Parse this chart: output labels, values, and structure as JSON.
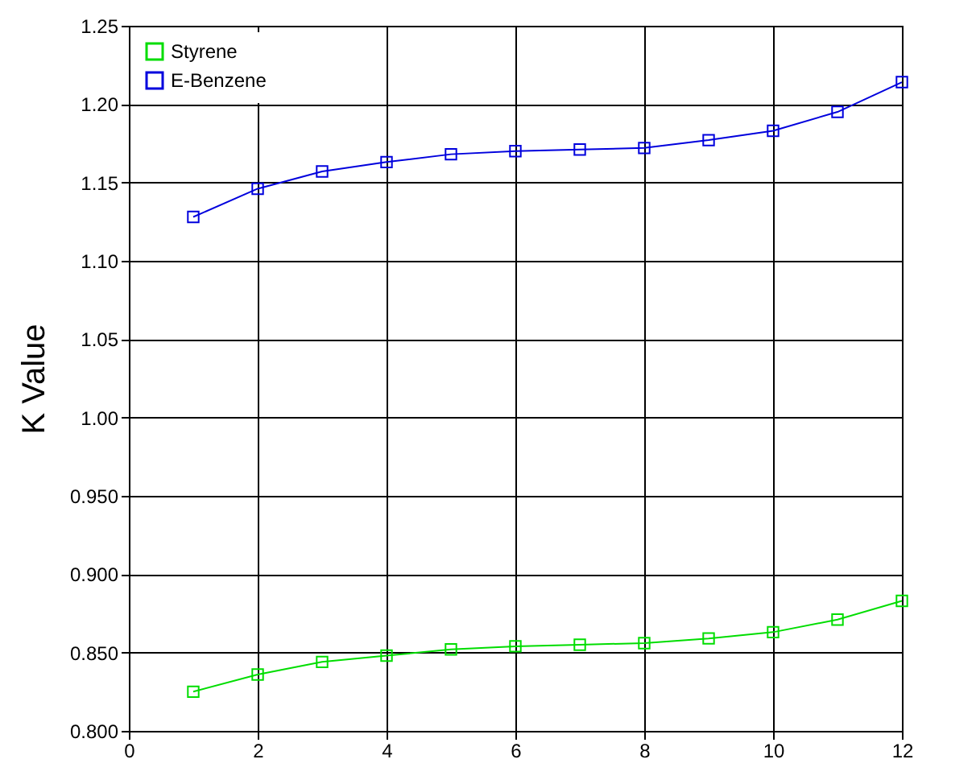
{
  "chart_data": {
    "type": "line",
    "ylabel": "K Value",
    "x": [
      1,
      2,
      3,
      4,
      5,
      6,
      7,
      8,
      9,
      10,
      11,
      12
    ],
    "series": [
      {
        "name": "Styrene",
        "color": "#00dd00",
        "values": [
          0.825,
          0.836,
          0.844,
          0.848,
          0.852,
          0.854,
          0.855,
          0.856,
          0.859,
          0.863,
          0.871,
          0.883
        ]
      },
      {
        "name": "E-Benzene",
        "color": "#0000dd",
        "values": [
          1.128,
          1.146,
          1.157,
          1.163,
          1.168,
          1.17,
          1.171,
          1.172,
          1.177,
          1.183,
          1.195,
          1.214
        ]
      }
    ],
    "xlim": [
      0,
      12
    ],
    "xticks": [
      0,
      2,
      4,
      6,
      8,
      10,
      12
    ],
    "ylim": [
      0.8,
      1.25
    ],
    "yticks": [
      {
        "value": 0.8,
        "label": "0.800"
      },
      {
        "value": 0.85,
        "label": "0.850"
      },
      {
        "value": 0.9,
        "label": "0.900"
      },
      {
        "value": 0.95,
        "label": "0.950"
      },
      {
        "value": 1.0,
        "label": "1.00"
      },
      {
        "value": 1.05,
        "label": "1.05"
      },
      {
        "value": 1.1,
        "label": "1.10"
      },
      {
        "value": 1.15,
        "label": "1.15"
      },
      {
        "value": 1.2,
        "label": "1.20"
      },
      {
        "value": 1.25,
        "label": "1.25"
      }
    ],
    "grid": true,
    "legend": "top left",
    "marker": "square",
    "line_style": "solid"
  }
}
